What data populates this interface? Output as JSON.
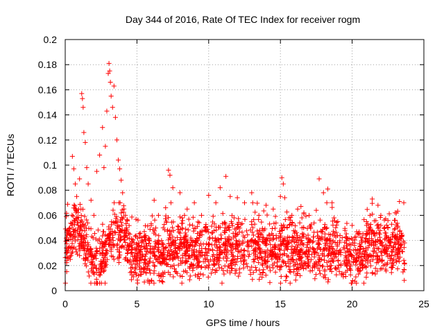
{
  "chart_data": {
    "type": "scatter",
    "title": "Day 344 of 2016, Rate Of TEC Index for receiver rogm",
    "xlabel": "GPS time / hours",
    "ylabel": "ROTI / TECUs",
    "xlim": [
      0,
      25
    ],
    "ylim": [
      0,
      0.2
    ],
    "xticks": [
      0,
      5,
      10,
      15,
      20,
      25
    ],
    "yticks": [
      0,
      0.02,
      0.04,
      0.06,
      0.08,
      0.1,
      0.12,
      0.14,
      0.16,
      0.18,
      0.2
    ],
    "xtick_labels": [
      "0",
      "5",
      "10",
      "15",
      "20",
      "25"
    ],
    "ytick_labels": [
      "0",
      "0.02",
      "0.04",
      "0.06",
      "0.08",
      "0.1",
      "0.12",
      "0.14",
      "0.16",
      "0.18",
      "0.2"
    ],
    "grid": true,
    "marker": "+",
    "color": "#ff0000",
    "series": [
      {
        "points": [
          [
            0.2,
            0.032
          ],
          [
            0.3,
            0.045
          ],
          [
            0.4,
            0.028
          ],
          [
            0.5,
            0.107
          ],
          [
            0.6,
            0.097
          ],
          [
            0.7,
            0.085
          ],
          [
            0.8,
            0.075
          ],
          [
            0.9,
            0.052
          ],
          [
            1.0,
            0.089
          ],
          [
            1.1,
            0.065
          ],
          [
            1.15,
            0.157
          ],
          [
            1.2,
            0.153
          ],
          [
            1.25,
            0.146
          ],
          [
            1.3,
            0.126
          ],
          [
            1.4,
            0.118
          ],
          [
            1.5,
            0.098
          ],
          [
            1.6,
            0.085
          ],
          [
            1.8,
            0.072
          ],
          [
            2.0,
            0.06
          ],
          [
            2.2,
            0.095
          ],
          [
            2.4,
            0.108
          ],
          [
            2.6,
            0.13
          ],
          [
            2.7,
            0.098
          ],
          [
            2.8,
            0.115
          ],
          [
            2.9,
            0.143
          ],
          [
            3.0,
            0.173
          ],
          [
            3.05,
            0.181
          ],
          [
            3.1,
            0.175
          ],
          [
            3.15,
            0.166
          ],
          [
            3.2,
            0.155
          ],
          [
            3.3,
            0.146
          ],
          [
            3.4,
            0.163
          ],
          [
            3.5,
            0.138
          ],
          [
            3.6,
            0.12
          ],
          [
            3.7,
            0.104
          ],
          [
            3.8,
            0.097
          ],
          [
            3.9,
            0.088
          ],
          [
            4.0,
            0.078
          ],
          [
            4.2,
            0.06
          ],
          [
            4.5,
            0.045
          ],
          [
            5.0,
            0.03
          ],
          [
            5.5,
            0.043
          ],
          [
            6.0,
            0.052
          ],
          [
            6.2,
            0.072
          ],
          [
            6.5,
            0.06
          ],
          [
            7.0,
            0.066
          ],
          [
            7.2,
            0.096
          ],
          [
            7.3,
            0.092
          ],
          [
            7.5,
            0.082
          ],
          [
            8.0,
            0.078
          ],
          [
            8.5,
            0.065
          ],
          [
            9.0,
            0.07
          ],
          [
            9.5,
            0.06
          ],
          [
            10.0,
            0.076
          ],
          [
            10.5,
            0.07
          ],
          [
            10.8,
            0.082
          ],
          [
            11.2,
            0.091
          ],
          [
            11.5,
            0.075
          ],
          [
            12.0,
            0.074
          ],
          [
            12.5,
            0.07
          ],
          [
            13.0,
            0.078
          ],
          [
            13.5,
            0.06
          ],
          [
            14.0,
            0.068
          ],
          [
            14.5,
            0.065
          ],
          [
            15.0,
            0.075
          ],
          [
            15.1,
            0.09
          ],
          [
            15.2,
            0.085
          ],
          [
            15.3,
            0.074
          ],
          [
            15.8,
            0.06
          ],
          [
            16.2,
            0.065
          ],
          [
            16.5,
            0.058
          ],
          [
            17.0,
            0.06
          ],
          [
            17.5,
            0.064
          ],
          [
            17.7,
            0.089
          ],
          [
            18.0,
            0.078
          ],
          [
            18.3,
            0.081
          ],
          [
            18.6,
            0.07
          ],
          [
            19.0,
            0.055
          ],
          [
            19.5,
            0.048
          ],
          [
            20.0,
            0.052
          ],
          [
            20.5,
            0.045
          ],
          [
            21.0,
            0.055
          ],
          [
            21.4,
            0.073
          ],
          [
            21.8,
            0.068
          ],
          [
            22.0,
            0.06
          ],
          [
            22.5,
            0.05
          ],
          [
            23.0,
            0.062
          ],
          [
            23.3,
            0.071
          ],
          [
            23.6,
            0.07
          ]
        ]
      }
    ]
  }
}
